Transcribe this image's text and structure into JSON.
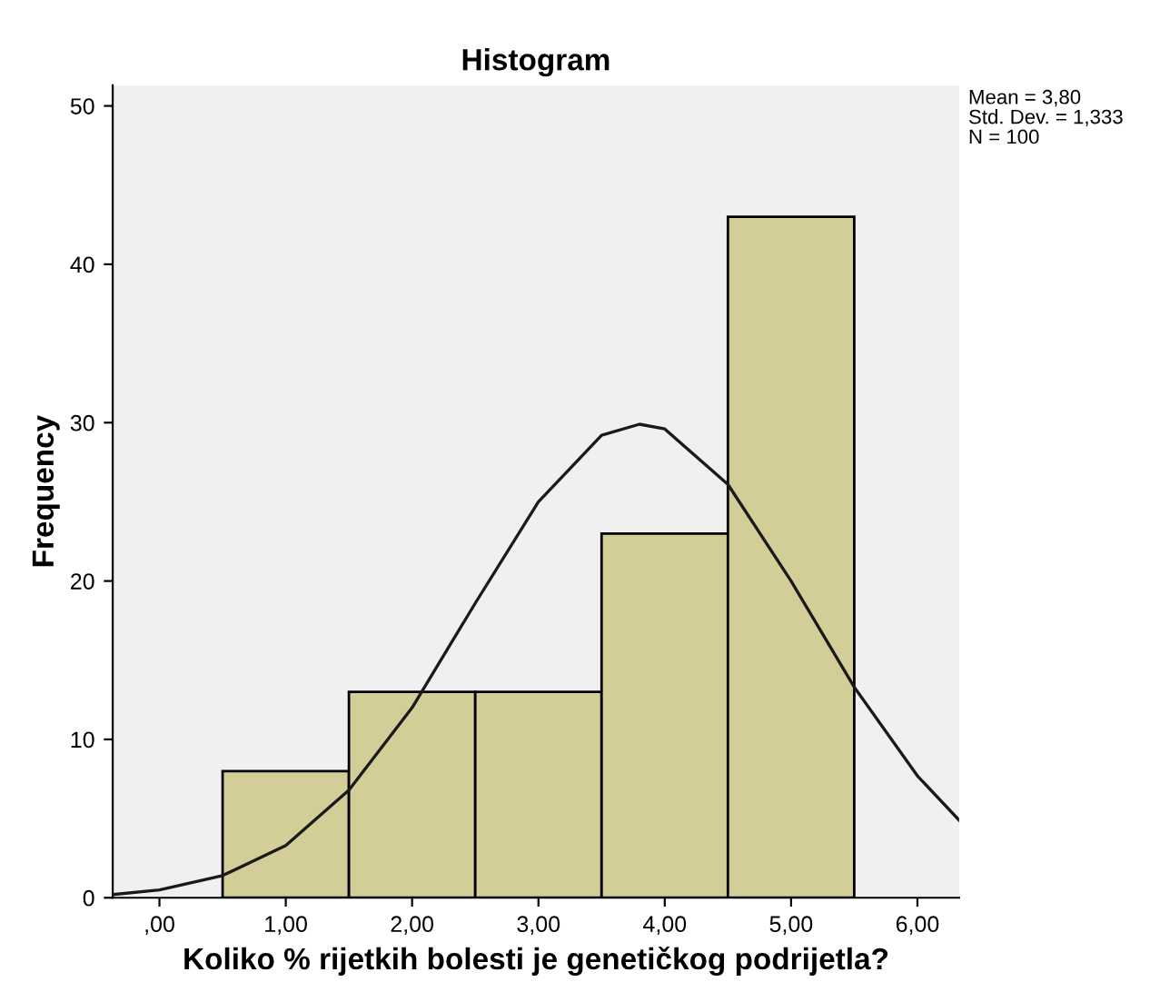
{
  "chart_data": {
    "type": "histogram",
    "title": "Histogram",
    "xlabel": "Koliko % rijetkih bolesti je genetičkog podrijetla?",
    "ylabel": "Frequency",
    "bins": [
      0.5,
      1.5,
      2.5,
      3.5,
      4.5,
      5.5
    ],
    "values": [
      8,
      13,
      13,
      23,
      43
    ],
    "color": "#d3ce98",
    "series": [
      {
        "type": "line",
        "color": "#1a1a1a",
        "x": [
          -0.37,
          0,
          0.5,
          1,
          1.5,
          2,
          2.5,
          3,
          3.5,
          3.8,
          4,
          4.5,
          5,
          5.5,
          6,
          6.33
        ],
        "values": [
          0.2,
          0.5,
          1.4,
          3.3,
          6.8,
          12,
          18.6,
          25,
          29.2,
          29.9,
          29.6,
          26.1,
          20,
          13.3,
          7.7,
          4.9
        ]
      }
    ],
    "xlim": [
      -0.37,
      6.33
    ],
    "ylim": [
      0,
      51.3
    ],
    "xticks": [
      {
        "value": 0,
        "label": ",00"
      },
      {
        "value": 1,
        "label": "1,00"
      },
      {
        "value": 2,
        "label": "2,00"
      },
      {
        "value": 3,
        "label": "3,00"
      },
      {
        "value": 4,
        "label": "4,00"
      },
      {
        "value": 5,
        "label": "5,00"
      },
      {
        "value": 6,
        "label": "6,00"
      }
    ],
    "yticks": [
      0,
      10,
      20,
      30,
      40,
      50
    ],
    "annotations": [
      "Mean = 3,80",
      "Std. Dev. = 1,333",
      "N = 100"
    ],
    "grid": false,
    "legend": false
  }
}
